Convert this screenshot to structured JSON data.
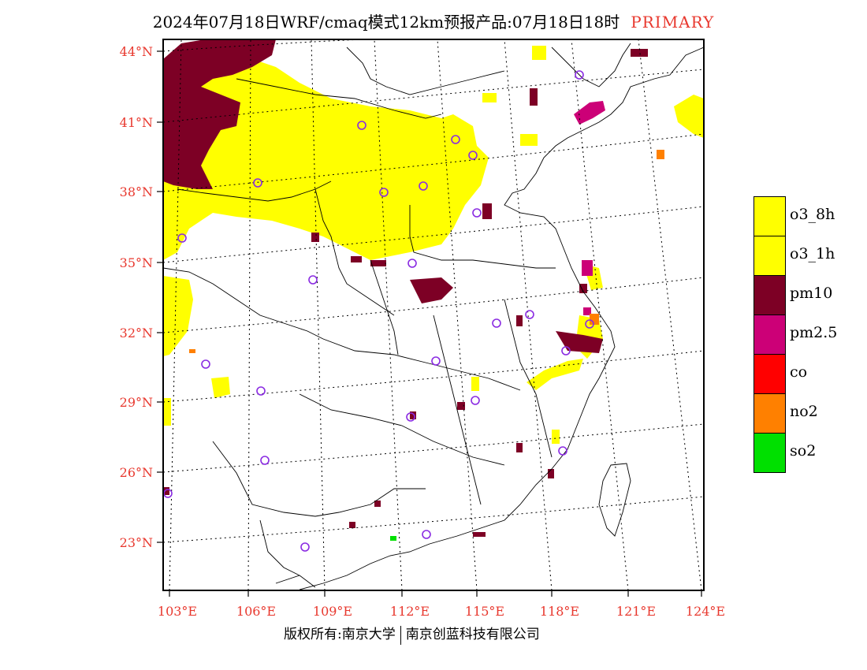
{
  "title": {
    "main": "2024年07月18日WRF/cmaq模式12km预报产品:07月18日18时",
    "tag": "PRIMARY",
    "tag_color": "#e8382e"
  },
  "axes": {
    "latitude_labels": [
      "44°N",
      "41°N",
      "38°N",
      "35°N",
      "32°N",
      "29°N",
      "26°N",
      "23°N"
    ],
    "longitude_labels": [
      "103°E",
      "106°E",
      "109°E",
      "112°E",
      "115°E",
      "118°E",
      "121°E",
      "124°E"
    ],
    "label_color": "#e8382e"
  },
  "legend": {
    "items": [
      {
        "label": "o3_8h",
        "color": "#ffff00"
      },
      {
        "label": "o3_1h",
        "color": "#ffff00"
      },
      {
        "label": "pm10",
        "color": "#7d0025"
      },
      {
        "label": "pm2.5",
        "color": "#cc0077"
      },
      {
        "label": "co",
        "color": "#ff0000"
      },
      {
        "label": "no2",
        "color": "#ff8000"
      },
      {
        "label": "so2",
        "color": "#00e000"
      }
    ]
  },
  "footer": {
    "left": "版权所有:南京大学",
    "right": "南京创蓝科技有限公司"
  },
  "map_colors": {
    "station_marker": "#8a2be2",
    "boundary": "#000000"
  }
}
